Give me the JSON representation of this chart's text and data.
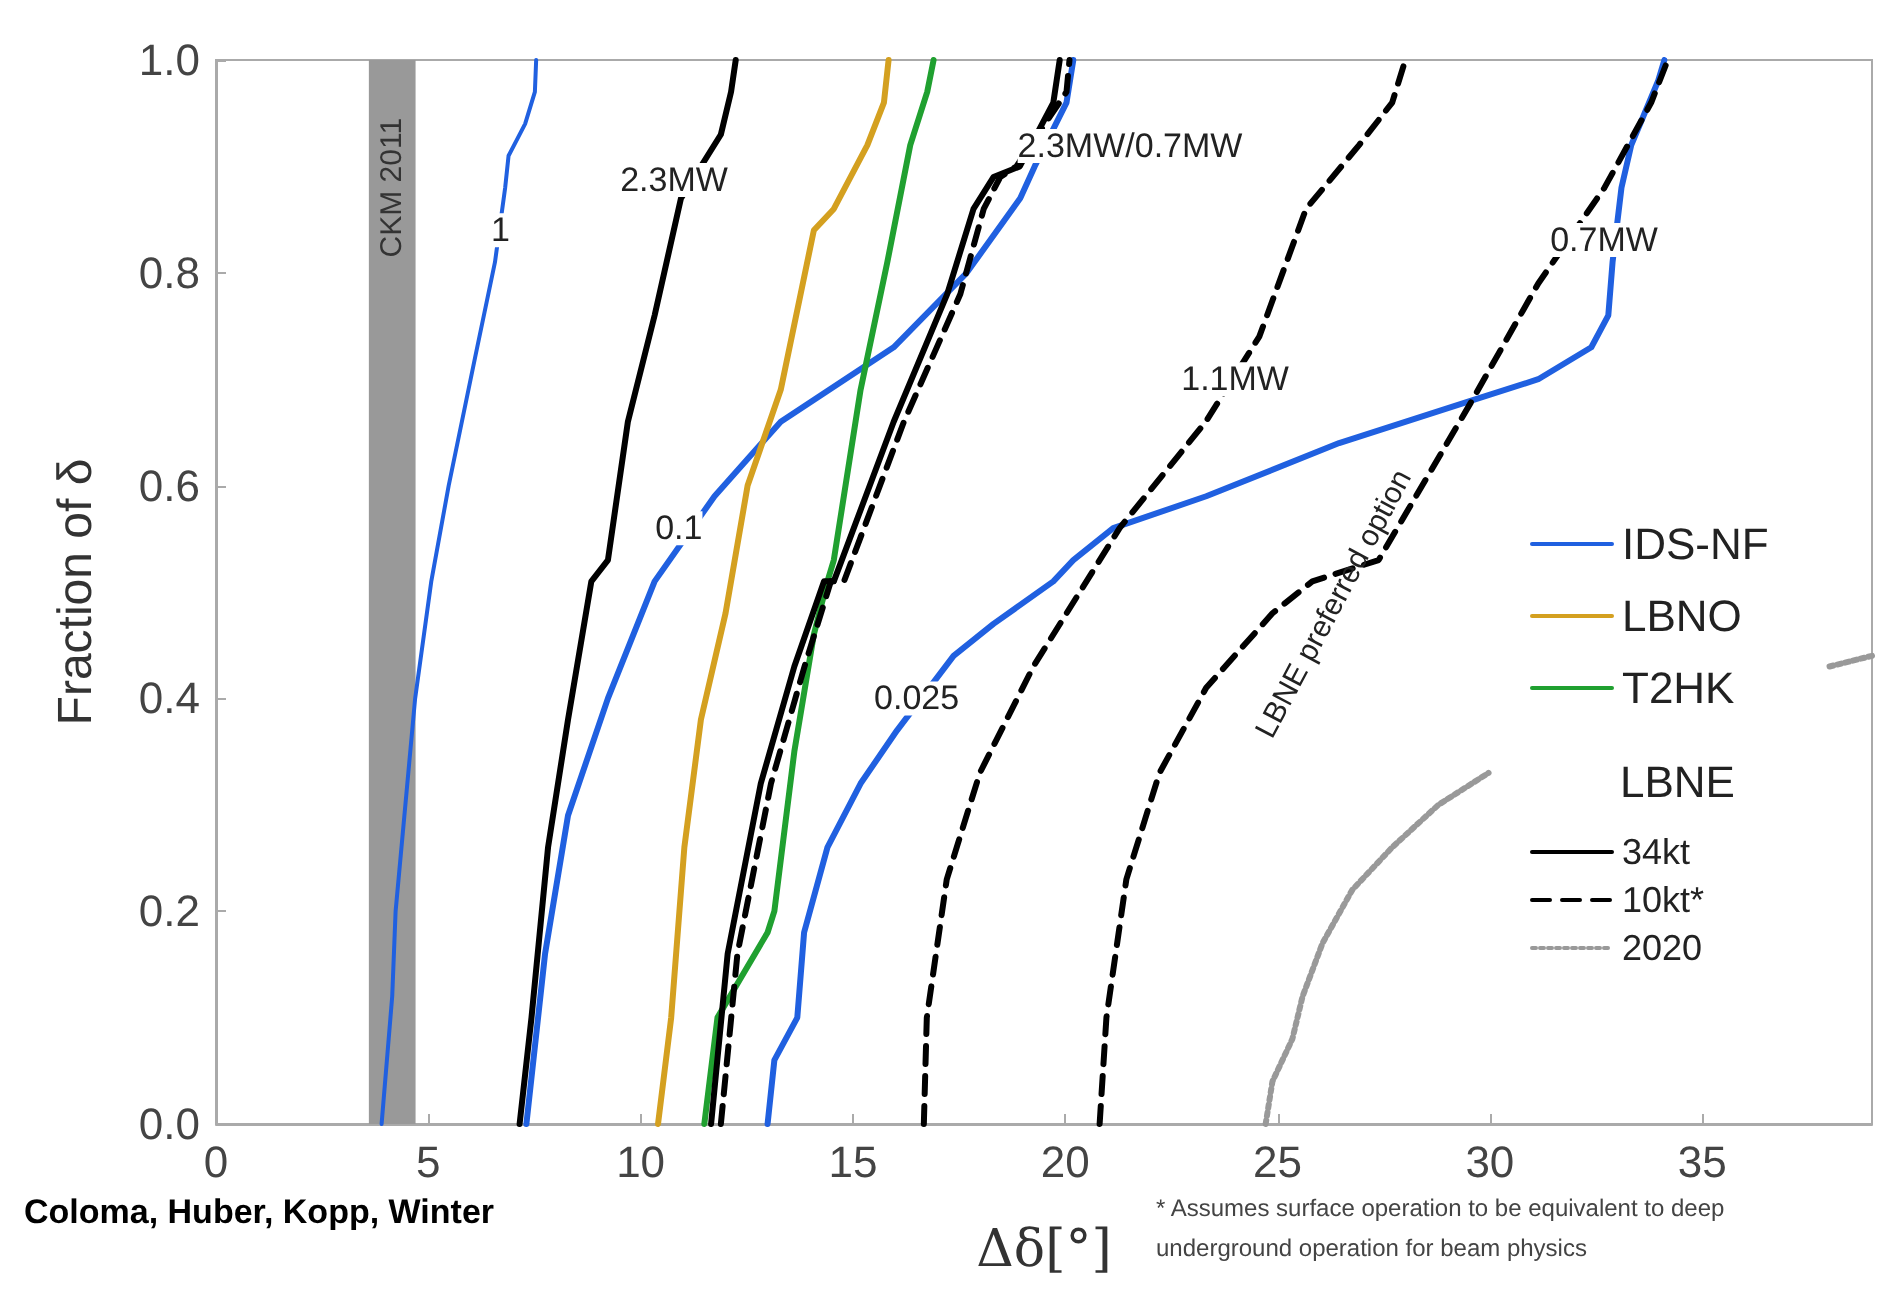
{
  "chart_data": {
    "type": "line",
    "xlabel": "Δδ[°]",
    "ylabel": "Fraction of δ",
    "legend_title": "LBNE",
    "legend": "right",
    "grid": false,
    "marker": "none",
    "xlim": [
      0,
      39
    ],
    "ylim": [
      0,
      1
    ],
    "xticks": [
      0,
      5,
      10,
      15,
      20,
      25,
      30,
      35
    ],
    "yticks": [
      {
        "value": 0,
        "label": "0.0"
      },
      {
        "value": 0.2,
        "label": "0.2"
      },
      {
        "value": 0.4,
        "label": "0.4"
      },
      {
        "value": 0.6,
        "label": "0.6"
      },
      {
        "value": 0.8,
        "label": "0.8"
      },
      {
        "value": 1,
        "label": "1.0"
      }
    ],
    "bands": [
      {
        "axis": "x",
        "from": 3.6,
        "to": 4.7,
        "label": "CKM 2011",
        "color": "#999999"
      }
    ],
    "series": [
      {
        "name": "IDS-NF",
        "color": "#2060e0",
        "line_style": "solid",
        "x": [
          3.9,
          4.15,
          4.23,
          4.69,
          5.07,
          5.48,
          6.1,
          6.57,
          6.81,
          6.89,
          7.28,
          7.51,
          7.54
        ],
        "values": [
          0,
          0.12,
          0.2,
          0.4,
          0.51,
          0.6,
          0.72,
          0.81,
          0.88,
          0.91,
          0.94,
          0.97,
          1
        ]
      },
      {
        "color": "#2060e0",
        "line_style": "solid",
        "x": [
          7.31,
          7.75,
          8.29,
          9.23,
          10.33,
          11.74,
          13.3,
          15.96,
          17.68,
          18.94,
          19.28,
          20.03,
          20.19
        ],
        "values": [
          0,
          0.16,
          0.29,
          0.4,
          0.51,
          0.59,
          0.66,
          0.73,
          0.8,
          0.87,
          0.9,
          0.96,
          1
        ]
      },
      {
        "color": "#2060e0",
        "line_style": "solid",
        "x": [
          12.99,
          13.15,
          13.69,
          13.85,
          14.4,
          15.18,
          16.04,
          17.37,
          18.31,
          19.72,
          20.19,
          21.13,
          23.32,
          26.45,
          29.58,
          31.14,
          32.39,
          32.79,
          32.89,
          33.1,
          33.33,
          33.96,
          34.11
        ],
        "values": [
          0,
          0.06,
          0.1,
          0.18,
          0.26,
          0.32,
          0.37,
          0.44,
          0.47,
          0.51,
          0.53,
          0.56,
          0.59,
          0.64,
          0.68,
          0.7,
          0.73,
          0.76,
          0.81,
          0.88,
          0.92,
          0.98,
          1
        ]
      },
      {
        "name": "LBNO",
        "color": "#d4a020",
        "line_style": "solid",
        "x": [
          10.41,
          10.72,
          11.03,
          11.42,
          12.0,
          12.52,
          13.3,
          14.08,
          14.55,
          15.34,
          15.73,
          15.84
        ],
        "values": [
          0,
          0.1,
          0.26,
          0.38,
          0.48,
          0.6,
          0.69,
          0.84,
          0.86,
          0.92,
          0.96,
          1
        ]
      },
      {
        "name": "T2HK",
        "color": "#20a030",
        "line_style": "solid",
        "x": [
          11.5,
          11.81,
          12.99,
          13.15,
          13.62,
          14.08,
          14.4,
          14.55,
          15.18,
          15.81,
          16.35,
          16.75,
          16.9
        ],
        "values": [
          0,
          0.1,
          0.18,
          0.2,
          0.35,
          0.46,
          0.51,
          0.53,
          0.69,
          0.81,
          0.92,
          0.97,
          1
        ]
      },
      {
        "name": "34kt",
        "color": "#000000",
        "line_style": "solid",
        "x": [
          7.15,
          7.43,
          7.82,
          8.29,
          8.84,
          9.23,
          9.7,
          10.33,
          10.95,
          11.89,
          12.13,
          12.24
        ],
        "values": [
          0,
          0.1,
          0.26,
          0.38,
          0.51,
          0.53,
          0.66,
          0.76,
          0.87,
          0.93,
          0.97,
          1
        ]
      },
      {
        "color": "#000000",
        "line_style": "solid",
        "x": [
          11.66,
          12.05,
          12.83,
          13.62,
          14.32,
          14.55,
          15.96,
          17.22,
          17.84,
          18.31,
          18.93,
          19.72,
          19.87
        ],
        "values": [
          0,
          0.16,
          0.32,
          0.43,
          0.51,
          0.51,
          0.66,
          0.78,
          0.86,
          0.89,
          0.9,
          0.96,
          1
        ]
      },
      {
        "name": "10kt*",
        "color": "#000000",
        "line_style": "dashed",
        "x": [
          11.89,
          12.28,
          13.07,
          13.86,
          14.48,
          14.79,
          16.2,
          17.53,
          18.08,
          18.47,
          18.85,
          20.03,
          20.1
        ],
        "values": [
          0,
          0.16,
          0.32,
          0.43,
          0.51,
          0.51,
          0.66,
          0.78,
          0.86,
          0.89,
          0.9,
          0.97,
          1
        ]
      },
      {
        "color": "#000000",
        "line_style": "dashed",
        "x": [
          16.67,
          16.74,
          17.21,
          17.99,
          19.25,
          20.5,
          21.28,
          23.31,
          24.57,
          25.67,
          26.92,
          27.7,
          28.01
        ],
        "values": [
          0,
          0.1,
          0.23,
          0.33,
          0.43,
          0.51,
          0.56,
          0.66,
          0.74,
          0.86,
          0.92,
          0.96,
          1
        ]
      },
      {
        "color": "#000000",
        "line_style": "dashed",
        "x": [
          20.81,
          20.97,
          21.44,
          22.22,
          23.32,
          24.88,
          25.82,
          27.38,
          29.58,
          31.14,
          32.7,
          33.8,
          34.19
        ],
        "values": [
          0,
          0.1,
          0.23,
          0.33,
          0.41,
          0.48,
          0.51,
          0.53,
          0.68,
          0.79,
          0.88,
          0.96,
          1
        ]
      },
      {
        "name": "2020",
        "color": "#999999",
        "line_style": "dotted",
        "x": [
          24.72,
          24.88,
          25.35,
          25.59,
          26.06,
          26.76,
          27.7,
          28.79,
          29.97
        ],
        "values": [
          0,
          0.04,
          0.08,
          0.12,
          0.17,
          0.22,
          0.26,
          0.3,
          0.33
        ]
      },
      {
        "color": "#999999",
        "line_style": "dotted",
        "x": [
          38.0,
          39.0
        ],
        "values": [
          0.43,
          0.44
        ]
      }
    ],
    "annotations": [
      {
        "text": "1",
        "x": 6.7,
        "y": 0.84
      },
      {
        "text": "1.1MW",
        "x": 24.0,
        "y": 0.7
      },
      {
        "text": "0.1",
        "x": 10.9,
        "y": 0.56
      },
      {
        "text": "0.025",
        "x": 16.5,
        "y": 0.4
      },
      "2.3MW",
      "2.3MW/0.7MW",
      "0.7MW",
      "LBNE preferred option",
      "Coloma, Huber, Kopp, Winter",
      "* Assumes surface operation to be equivalent to deep underground operation for beam physics"
    ]
  }
}
